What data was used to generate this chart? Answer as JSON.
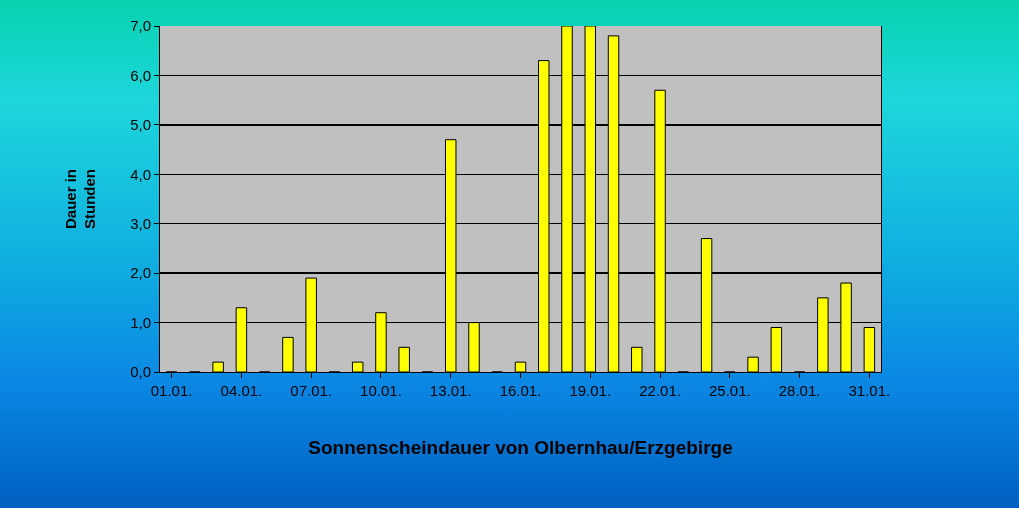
{
  "chart_data": {
    "type": "bar",
    "xlabel": "Sonnenscheindauer von Olbernhau/Erzgebirge",
    "ylabel": "Dauer in\nStunden",
    "categories": [
      "01.01.",
      null,
      null,
      "04.01.",
      null,
      null,
      "07.01.",
      null,
      null,
      "10.01.",
      null,
      null,
      "13.01.",
      null,
      null,
      "16.01.",
      null,
      null,
      "19.01.",
      null,
      null,
      "22.01.",
      null,
      null,
      "25.01.",
      null,
      null,
      "28.01.",
      null,
      null,
      "31.01."
    ],
    "values": [
      0,
      0,
      0.2,
      1.3,
      0,
      0.7,
      1.9,
      0,
      0.2,
      1.2,
      0.5,
      0,
      4.7,
      1.0,
      0,
      0.2,
      6.3,
      7.0,
      7.0,
      6.8,
      0.5,
      5.7,
      0,
      2.7,
      0,
      0.3,
      0.9,
      0,
      1.5,
      1.8,
      0.9
    ],
    "color": "#ffff00",
    "ylim": [
      0,
      7
    ],
    "yticks": [
      {
        "value": 0,
        "label": "0,0"
      },
      {
        "value": 1,
        "label": "1,0"
      },
      {
        "value": 2,
        "label": "2,0"
      },
      {
        "value": 3,
        "label": "3,0"
      },
      {
        "value": 4,
        "label": "4,0"
      },
      {
        "value": 5,
        "label": "5,0"
      },
      {
        "value": 6,
        "label": "6,0"
      },
      {
        "value": 7,
        "label": "7,0"
      }
    ],
    "grid": "y"
  }
}
